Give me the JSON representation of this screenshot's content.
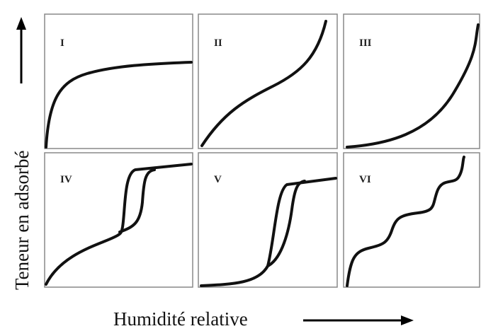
{
  "panels": [
    {
      "label": "I"
    },
    {
      "label": "II"
    },
    {
      "label": "III"
    },
    {
      "label": "IV"
    },
    {
      "label": "V"
    },
    {
      "label": "VI"
    }
  ],
  "y_axis_label": "Teneur en adsorbé",
  "x_axis_label": "Humidité relative"
}
